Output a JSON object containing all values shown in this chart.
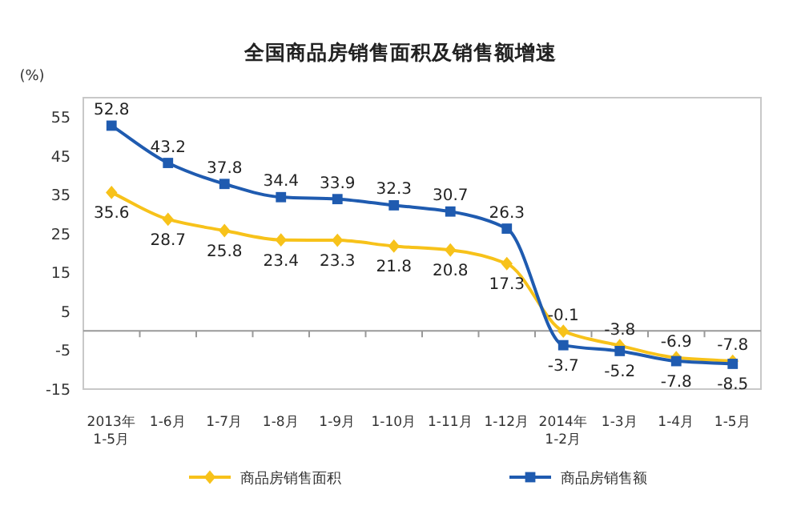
{
  "chart_data": {
    "type": "line",
    "title": "全国商品房销售面积及销售额增速",
    "ylabel": "(%)",
    "categories": [
      "2013年\n1-5月",
      "1-6月",
      "1-7月",
      "1-8月",
      "1-9月",
      "1-10月",
      "1-11月",
      "1-12月",
      "2014年\n1-2月",
      "1-3月",
      "1-4月",
      "1-5月"
    ],
    "series": [
      {
        "name": "商品房销售面积",
        "color": "#f7c21a",
        "marker": "diamond",
        "values": [
          35.6,
          28.7,
          25.8,
          23.4,
          23.3,
          21.8,
          20.8,
          17.3,
          -0.1,
          -3.8,
          -6.9,
          -7.8
        ]
      },
      {
        "name": "商品房销售额",
        "color": "#1f5bb0",
        "marker": "square",
        "values": [
          52.8,
          43.2,
          37.8,
          34.4,
          33.9,
          32.3,
          30.7,
          26.3,
          -3.7,
          -5.2,
          -7.8,
          -8.5
        ]
      }
    ],
    "ylim": [
      -15,
      60
    ],
    "yticks": [
      55,
      45,
      35,
      25,
      15,
      5,
      -5,
      -15
    ],
    "ref_lines": [
      {
        "axis": "y",
        "value": 0,
        "color": "#999999"
      }
    ],
    "data_labels": true,
    "grid": false,
    "legend": "bottom",
    "line_style": "solid"
  }
}
